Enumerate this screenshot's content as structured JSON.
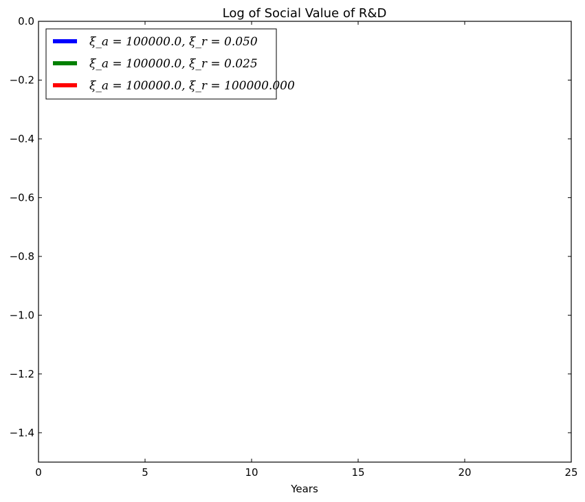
{
  "chart_data": {
    "type": "line",
    "title": "Log of Social Value of R&D",
    "xlabel": "Years",
    "ylabel": "",
    "xlim": [
      0,
      25
    ],
    "ylim": [
      -1.5,
      0.0
    ],
    "xticks": [
      0,
      5,
      10,
      15,
      20,
      25
    ],
    "xtick_labels": [
      "0",
      "5",
      "10",
      "15",
      "20",
      "25"
    ],
    "yticks": [
      0.0,
      -0.2,
      -0.4,
      -0.6,
      -0.8,
      -1.0,
      -1.2,
      -1.4
    ],
    "ytick_labels": [
      "0.0",
      "−0.2",
      "−0.4",
      "−0.6",
      "−0.8",
      "−1.0",
      "−1.2",
      "−1.4"
    ],
    "grid": false,
    "legend_position": "top-left",
    "series": [
      {
        "name": "ξ_a = 100000.0, ξ_r = 0.050",
        "color": "#0000ff",
        "x": [],
        "y": []
      },
      {
        "name": "ξ_a = 100000.0, ξ_r = 0.025",
        "color": "#008000",
        "x": [],
        "y": []
      },
      {
        "name": "ξ_a = 100000.0, ξ_r = 100000.000",
        "color": "#ff0000",
        "x": [],
        "y": []
      }
    ]
  }
}
